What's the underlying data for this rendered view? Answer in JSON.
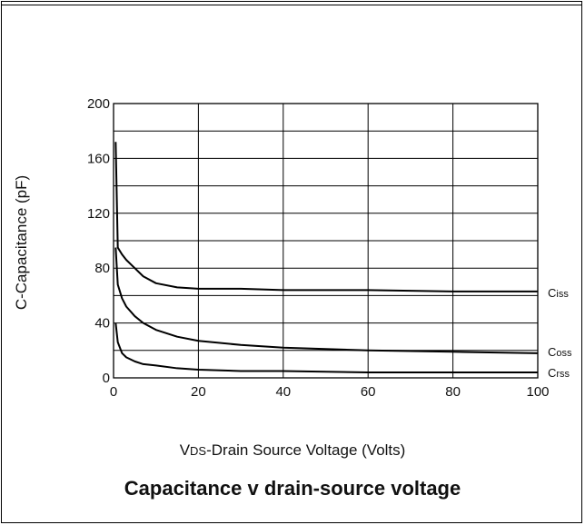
{
  "chart_data": {
    "type": "line",
    "title": "Capacitance v drain-source voltage",
    "xlabel_prefix": "V",
    "xlabel_sub": "DS",
    "xlabel_rest": "-Drain Source Voltage (Volts)",
    "ylabel": "C-Capacitance (pF)",
    "xlim": [
      0,
      100
    ],
    "ylim": [
      0,
      200
    ],
    "xticks": [
      0,
      20,
      40,
      60,
      80,
      100
    ],
    "yticks": [
      0,
      40,
      80,
      120,
      160,
      200
    ],
    "grid": true,
    "series": [
      {
        "name": "Ciss",
        "name_main": "C",
        "name_sub": "iss",
        "x": [
          0.5,
          1,
          2,
          3,
          5,
          7,
          10,
          15,
          20,
          30,
          40,
          60,
          80,
          100
        ],
        "y": [
          172,
          95,
          90,
          86,
          80,
          74,
          69,
          66,
          65,
          65,
          64,
          64,
          63,
          63
        ]
      },
      {
        "name": "Coss",
        "name_main": "C",
        "name_sub": "oss",
        "x": [
          0.5,
          1,
          2,
          3,
          5,
          7,
          10,
          15,
          20,
          30,
          40,
          60,
          80,
          100
        ],
        "y": [
          95,
          68,
          58,
          52,
          45,
          40,
          35,
          30,
          27,
          24,
          22,
          20,
          19,
          18
        ]
      },
      {
        "name": "Crss",
        "name_main": "C",
        "name_sub": "rss",
        "x": [
          0.5,
          1,
          2,
          3,
          5,
          7,
          10,
          15,
          20,
          30,
          40,
          60,
          80,
          100
        ],
        "y": [
          40,
          26,
          18,
          15,
          12,
          10,
          9,
          7,
          6,
          5,
          5,
          4,
          4,
          4
        ]
      }
    ]
  }
}
